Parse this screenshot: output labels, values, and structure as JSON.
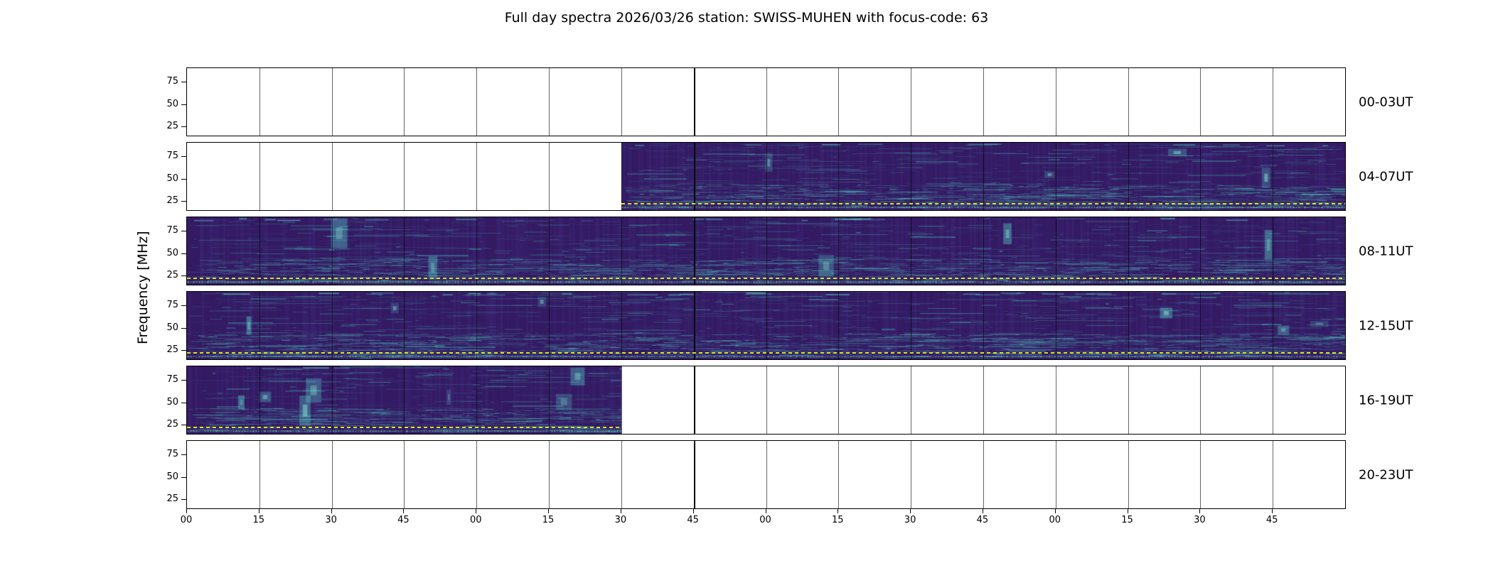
{
  "figure": {
    "title": "Full day spectra 2026/03/26 station: SWISS-MUHEN with focus-code: 63",
    "ylabel": "Frequency [MHz]"
  },
  "chart_data": {
    "type": "heatmap",
    "title": "Full day spectra 2026/03/26 station: SWISS-MUHEN with focus-code: 63",
    "station": "SWISS-MUHEN",
    "date": "2026/03/26",
    "focus_code": "63",
    "ylabel": "Frequency [MHz]",
    "y_axis_range_mhz": [
      15,
      90
    ],
    "y_ticks": [
      75,
      50,
      25
    ],
    "x_tick_labels": [
      "00",
      "15",
      "30",
      "45",
      "00",
      "15",
      "30",
      "45",
      "00",
      "15",
      "30",
      "45",
      "00",
      "15",
      "30",
      "45"
    ],
    "minutes_per_row": 240,
    "quarters_per_row": 16,
    "rows": [
      {
        "label": "00-03UT",
        "coverage": []
      },
      {
        "label": "04-07UT",
        "coverage": [
          {
            "start_quarter": 6,
            "end_quarter": 16
          }
        ]
      },
      {
        "label": "08-11UT",
        "coverage": [
          {
            "start_quarter": 0,
            "end_quarter": 16
          }
        ]
      },
      {
        "label": "12-15UT",
        "coverage": [
          {
            "start_quarter": 0,
            "end_quarter": 16
          }
        ]
      },
      {
        "label": "16-19UT",
        "coverage": [
          {
            "start_quarter": 0,
            "end_quarter": 6
          }
        ]
      },
      {
        "label": "20-23UT",
        "coverage": []
      }
    ],
    "colors": {
      "spectrogram_base": "#331a63",
      "streak_teal": "#46c8b9",
      "bright_teal": "#6ee0cc",
      "dashed_line_yellow": "#d8e219",
      "grid_line": "#000000",
      "background": "#ffffff",
      "text": "#000000"
    }
  }
}
